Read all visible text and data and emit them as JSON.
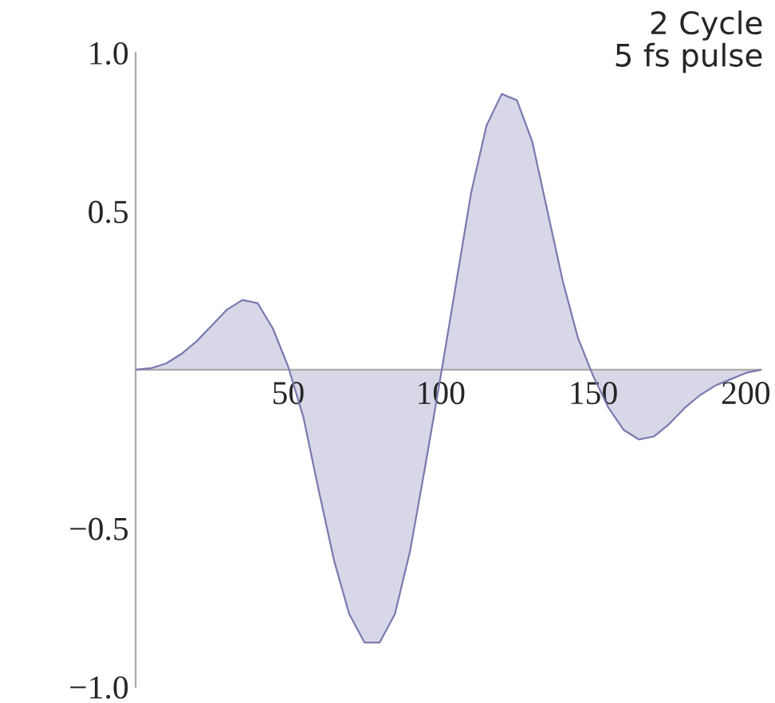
{
  "chart_data": {
    "type": "area",
    "annotations": [
      "2 Cycle\n5 fs pulse"
    ],
    "x": [
      0,
      5,
      10,
      15,
      20,
      25,
      30,
      35,
      40,
      45,
      50,
      55,
      60,
      65,
      70,
      75,
      80,
      85,
      90,
      95,
      100,
      105,
      110,
      115,
      120,
      125,
      130,
      135,
      140,
      145,
      150,
      155,
      160,
      165,
      170,
      175,
      180,
      185,
      190,
      195,
      200,
      205
    ],
    "series": [
      {
        "color": "#7a7ab0",
        "values": [
          0,
          0.005,
          0.02,
          0.05,
          0.09,
          0.14,
          0.19,
          0.22,
          0.21,
          0.13,
          0.01,
          -0.15,
          -0.38,
          -0.6,
          -0.77,
          -0.86,
          -0.86,
          -0.77,
          -0.57,
          -0.3,
          -0.02,
          0.27,
          0.56,
          0.77,
          0.87,
          0.85,
          0.72,
          0.5,
          0.28,
          0.1,
          -0.02,
          -0.12,
          -0.19,
          -0.22,
          -0.21,
          -0.17,
          -0.12,
          -0.08,
          -0.05,
          -0.03,
          -0.01,
          0
        ]
      }
    ],
    "xlim": [
      0,
      205
    ],
    "ylim": [
      -1.0,
      1.0
    ],
    "xticks": [
      50,
      100,
      150,
      200
    ],
    "yticks": [
      {
        "value": 1.0,
        "label": "1.0"
      },
      {
        "value": 0.5,
        "label": "0.5"
      },
      {
        "value": -0.5,
        "label": "−0.5"
      },
      {
        "value": -1.0,
        "label": "−1.0"
      }
    ],
    "grid": false,
    "legend": false
  }
}
